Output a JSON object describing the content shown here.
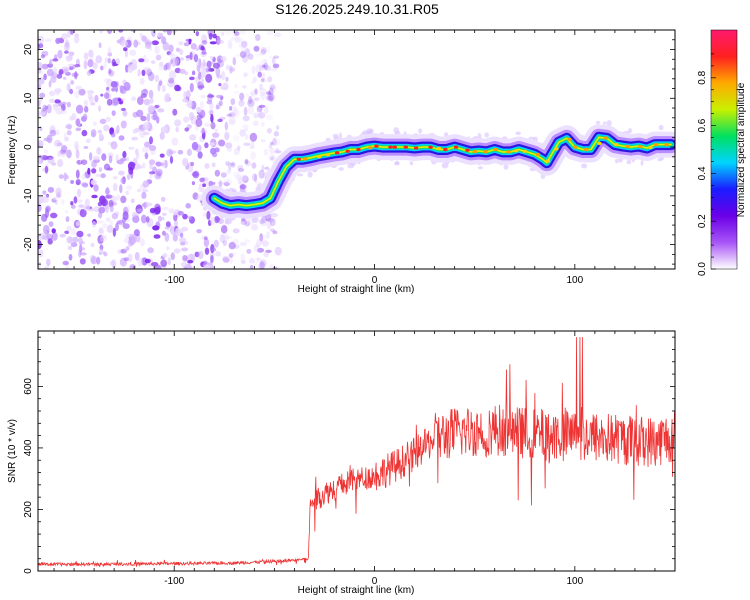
{
  "title": "S126.2025.249.10.31.R05",
  "colors": {
    "snr_line": "#ee3333",
    "axis": "#000000"
  },
  "colormap_stops": [
    "#ffffff",
    "#a855f7",
    "#6a00e8",
    "#1b1bff",
    "#00d4ff",
    "#00e060",
    "#c8f000",
    "#ffaa00",
    "#ff2020",
    "#ff1a6e"
  ],
  "chart_data": [
    {
      "type": "heatmap",
      "name": "spectrogram",
      "title": "S126.2025.249.10.31.R05",
      "xlabel": "Height of straight line (km)",
      "ylabel": "Frequency (Hz)",
      "xlim": [
        -168,
        150
      ],
      "ylim": [
        -25,
        24
      ],
      "xticks": [
        -100,
        0,
        100
      ],
      "yticks": [
        -20,
        -10,
        0,
        10,
        20
      ],
      "noise_region_km": [
        -168,
        -48
      ],
      "ridge": {
        "x": [
          -80,
          -76,
          -72,
          -68,
          -64,
          -60,
          -56,
          -52,
          -48,
          -44,
          -40,
          -36,
          -32,
          -28,
          -24,
          -20,
          -16,
          -12,
          -8,
          -4,
          0,
          4,
          8,
          12,
          16,
          20,
          24,
          28,
          32,
          36,
          40,
          44,
          48,
          52,
          56,
          60,
          64,
          68,
          72,
          76,
          80,
          84,
          86,
          88,
          92,
          96,
          100,
          104,
          108,
          112,
          116,
          120,
          124,
          128,
          132,
          136,
          140,
          144,
          148
        ],
        "y": [
          -10.5,
          -11.5,
          -12,
          -11.8,
          -12,
          -11.8,
          -11.5,
          -10.5,
          -7,
          -4,
          -2.5,
          -2.5,
          -2.2,
          -1.8,
          -1.5,
          -1.2,
          -1,
          -0.5,
          -0.5,
          0,
          0.2,
          0,
          0,
          0,
          0,
          -0.2,
          0,
          0,
          -0.5,
          -0.5,
          0,
          -0.5,
          -1,
          -0.8,
          -1,
          -0.5,
          -1,
          -1,
          -0.5,
          -1,
          -1.5,
          -2.5,
          -3.2,
          -1.8,
          1,
          1.8,
          0,
          -0.5,
          -0.5,
          2,
          1.8,
          0.5,
          0.2,
          0,
          0.2,
          -0.2,
          0.5,
          0.5,
          0.5
        ]
      },
      "colorbar": {
        "label": "Normalized spectral amplitude",
        "range": [
          0,
          1
        ],
        "ticks": [
          0.0,
          0.2,
          0.4,
          0.6,
          0.8
        ]
      }
    },
    {
      "type": "line",
      "name": "snr",
      "xlabel": "Height of straight line (km)",
      "ylabel": "SNR (10 * v/v)",
      "xlim": [
        -168,
        150
      ],
      "ylim": [
        0,
        780
      ],
      "xticks": [
        -100,
        0,
        100
      ],
      "yticks": [
        0,
        200,
        400,
        600
      ],
      "trend": {
        "x": [
          -168,
          -140,
          -100,
          -70,
          -45,
          -33,
          -32,
          -28,
          -20,
          -10,
          0,
          10,
          20,
          30,
          40,
          60,
          80,
          100,
          120,
          140,
          150
        ],
        "y": [
          22,
          22,
          24,
          26,
          33,
          40,
          220,
          240,
          270,
          295,
          310,
          340,
          380,
          430,
          450,
          460,
          445,
          440,
          430,
          420,
          440
        ]
      }
    }
  ]
}
